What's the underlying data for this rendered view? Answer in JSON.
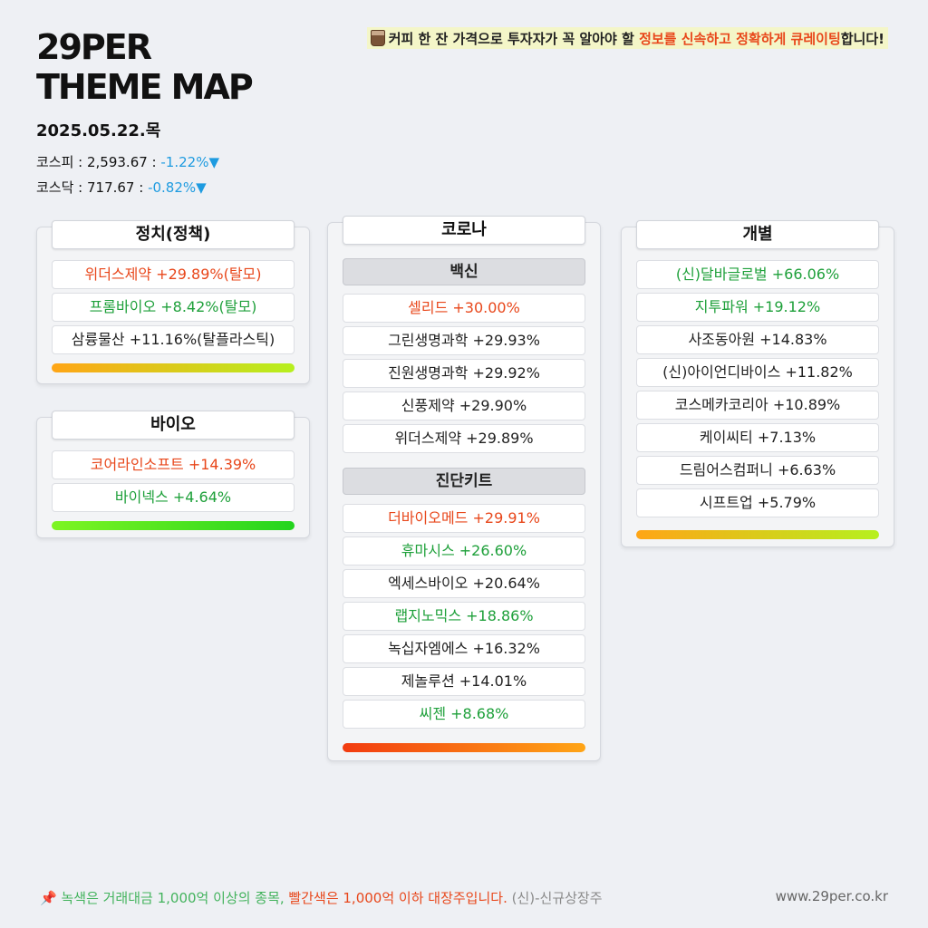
{
  "header": {
    "brand_line1": "29PER",
    "brand_line2": "THEME MAP",
    "date": "2025.05.22.목",
    "kospi_label": "코스피 : 2,593.67 : ",
    "kospi_change": "-1.22%▼",
    "kosdaq_label": "코스닥 : 717.67 : ",
    "kosdaq_change": "-0.82%▼",
    "tagline_part1": "커피 한 잔 가격으로 투자자가 꼭 알아야 할 ",
    "tagline_highlight": "정보를 신속하고 정확하게 큐레이팅",
    "tagline_part2": "합니다!",
    "cup_icon": "coffee-cup-icon"
  },
  "colors": {
    "red": "#e8471b",
    "green": "#1ea03a",
    "black": "#222222",
    "negative": "#1e9be0"
  },
  "panels": {
    "politics": {
      "title": "정치(정책)",
      "items": [
        {
          "text": "위더스제약 +29.89%(탈모)",
          "color": "red"
        },
        {
          "text": "프롬바이오 +8.42%(탈모)",
          "color": "green"
        },
        {
          "text": "삼륭물산 +11.16%(탈플라스틱)",
          "color": "black"
        }
      ]
    },
    "bio": {
      "title": "바이오",
      "items": [
        {
          "text": "코어라인소프트 +14.39%",
          "color": "red"
        },
        {
          "text": "바이넥스 +4.64%",
          "color": "green"
        }
      ]
    },
    "corona": {
      "title": "코로나",
      "vaccine_title": "백신",
      "vaccine_items": [
        {
          "text": "셀리드 +30.00%",
          "color": "red"
        },
        {
          "text": "그린생명과학 +29.93%",
          "color": "black"
        },
        {
          "text": "진원생명과학 +29.92%",
          "color": "black"
        },
        {
          "text": "신풍제약 +29.90%",
          "color": "black"
        },
        {
          "text": "위더스제약 +29.89%",
          "color": "black"
        }
      ],
      "kit_title": "진단키트",
      "kit_items": [
        {
          "text": "더바이오메드 +29.91%",
          "color": "red"
        },
        {
          "text": "휴마시스 +26.60%",
          "color": "green"
        },
        {
          "text": "엑세스바이오 +20.64%",
          "color": "black"
        },
        {
          "text": "랩지노믹스 +18.86%",
          "color": "green"
        },
        {
          "text": "녹십자엠에스 +16.32%",
          "color": "black"
        },
        {
          "text": "제놀루션 +14.01%",
          "color": "black"
        },
        {
          "text": "씨젠 +8.68%",
          "color": "green"
        }
      ]
    },
    "individual": {
      "title": "개별",
      "items": [
        {
          "text": "(신)달바글로벌 +66.06%",
          "color": "green"
        },
        {
          "text": "지투파워 +19.12%",
          "color": "green"
        },
        {
          "text": "사조동아원 +14.83%",
          "color": "black"
        },
        {
          "text": "(신)아이언디바이스 +11.82%",
          "color": "black"
        },
        {
          "text": "코스메카코리아 +10.89%",
          "color": "black"
        },
        {
          "text": "케이씨티 +7.13%",
          "color": "black"
        },
        {
          "text": "드림어스컴퍼니 +6.63%",
          "color": "black"
        },
        {
          "text": "시프트업 +5.79%",
          "color": "black"
        }
      ]
    }
  },
  "footer": {
    "pin_icon": "pushpin-icon",
    "green_note": "녹색은 거래대금 1,000억 이상의 종목, ",
    "red_note": "빨간색은 1,000억 이하 대장주입니다.",
    "new_note": " (신)-신규상장주",
    "site": "www.29per.co.kr"
  }
}
